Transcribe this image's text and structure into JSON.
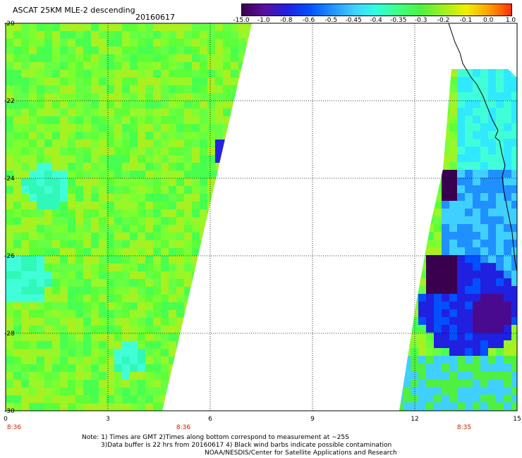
{
  "header": {
    "title": "ASCAT 25KM MLE-2 descending",
    "date": "20160617"
  },
  "colorbar": {
    "labels": [
      "-15.0",
      "-1.0",
      "-0.8",
      "-0.6",
      "-0.5",
      "-0.45",
      "-0.4",
      "-0.35",
      "-0.3",
      "-0.2",
      "-0.1",
      "0.0",
      "1.0"
    ],
    "colors": [
      "#3a0050",
      "#5a10a0",
      "#2020e0",
      "#0050ff",
      "#2090ff",
      "#40d0ff",
      "#30ffe0",
      "#40ff80",
      "#50f040",
      "#a0f020",
      "#f0f000",
      "#ffa000",
      "#ff3000"
    ]
  },
  "axes": {
    "x_ticks": [
      "0",
      "3",
      "6",
      "9",
      "12",
      "15"
    ],
    "y_ticks": [
      "-20",
      "-22",
      "-24",
      "-26",
      "-28",
      "-30"
    ],
    "time_labels": [
      "8:36",
      "8:36",
      "8:35"
    ]
  },
  "notes": {
    "line1": "Note: 1) Times are GMT 2)Times along bottom correspond to measurement at ~25S",
    "line2": "3)Data buffer is 22 hrs from 20160617 4) Black wind barbs indicate possible contamination",
    "line3": "NOAA/NESDIS/Center for Satellite Applications and Research"
  }
}
